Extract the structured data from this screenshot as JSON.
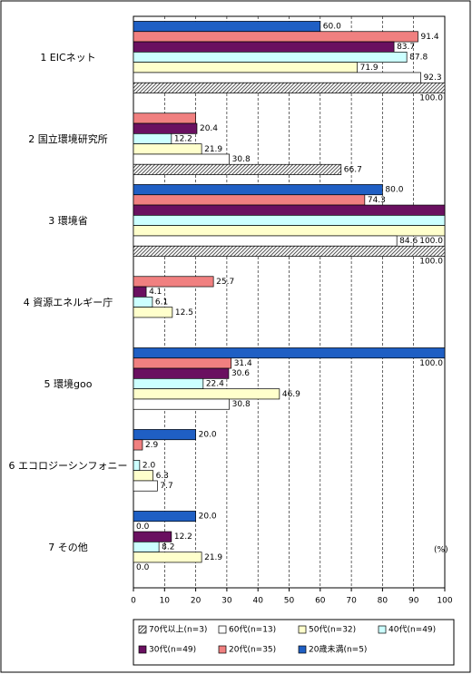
{
  "chart_data": {
    "type": "bar",
    "orientation": "horizontal",
    "categories": [
      "1 EICネット",
      "2 国立環境研究所",
      "3 環境省",
      "4 資源エネルギー庁",
      "5 環境goo",
      "6 エコロジーシンフォニー",
      "7 その他"
    ],
    "series": [
      {
        "name": "20歳未満(n=5)",
        "color": "#1f5fc4",
        "values": [
          60.0,
          null,
          80.0,
          null,
          100.0,
          20.0,
          20.0
        ],
        "value_labels": [
          "60.0",
          null,
          "80.0",
          null,
          "100.0",
          "20.0",
          "20.0"
        ]
      },
      {
        "name": "20代(n=35)",
        "color": "#f08080",
        "values": [
          91.4,
          20.0,
          74.3,
          25.7,
          31.4,
          2.9,
          0.0
        ],
        "value_labels": [
          "91.4",
          null,
          "74.3",
          "25.7",
          "31.4",
          "2.9",
          "0.0"
        ]
      },
      {
        "name": "30代(n=49)",
        "color": "#6a1060",
        "values": [
          83.7,
          20.4,
          100.0,
          4.1,
          30.6,
          null,
          12.2
        ],
        "value_labels": [
          "83.7",
          "20.4",
          "100.0",
          "4.1",
          "30.6",
          null,
          "12.2"
        ]
      },
      {
        "name": "40代(n=49)",
        "color": "#ccffff",
        "values": [
          87.8,
          12.2,
          100.0,
          6.1,
          22.4,
          2.0,
          8.2
        ],
        "value_labels": [
          "87.8",
          "12.2",
          "100.0",
          "6.1",
          "22.4",
          "2.0",
          "8.2"
        ]
      },
      {
        "name": "50代(n=32)",
        "color": "#ffffcc",
        "values": [
          71.9,
          21.9,
          100.0,
          12.5,
          46.9,
          6.3,
          21.9
        ],
        "value_labels": [
          "71.9",
          "21.9",
          "100.0",
          "12.5",
          "46.9",
          "6.3",
          "21.9"
        ]
      },
      {
        "name": "60代(n=13)",
        "color": "#ffffff",
        "values": [
          92.3,
          30.8,
          84.6,
          null,
          30.8,
          7.7,
          0.0
        ],
        "value_labels": [
          "92.3",
          "30.8",
          "84.6",
          null,
          "30.8",
          "7.7",
          "0.0"
        ]
      },
      {
        "name": "70代以上(n=3)",
        "color": "#999999",
        "pattern": "hatch",
        "values": [
          100.0,
          66.7,
          100.0,
          null,
          null,
          null,
          null
        ],
        "value_labels": [
          "100.0",
          "66.7",
          "100.0",
          null,
          null,
          null,
          null
        ]
      }
    ],
    "xlim": [
      0,
      100
    ],
    "xticks": [
      0,
      10,
      20,
      30,
      40,
      50,
      60,
      70,
      80,
      90,
      100
    ],
    "grid": true,
    "annotation": "(%)",
    "legend": "bottom"
  }
}
